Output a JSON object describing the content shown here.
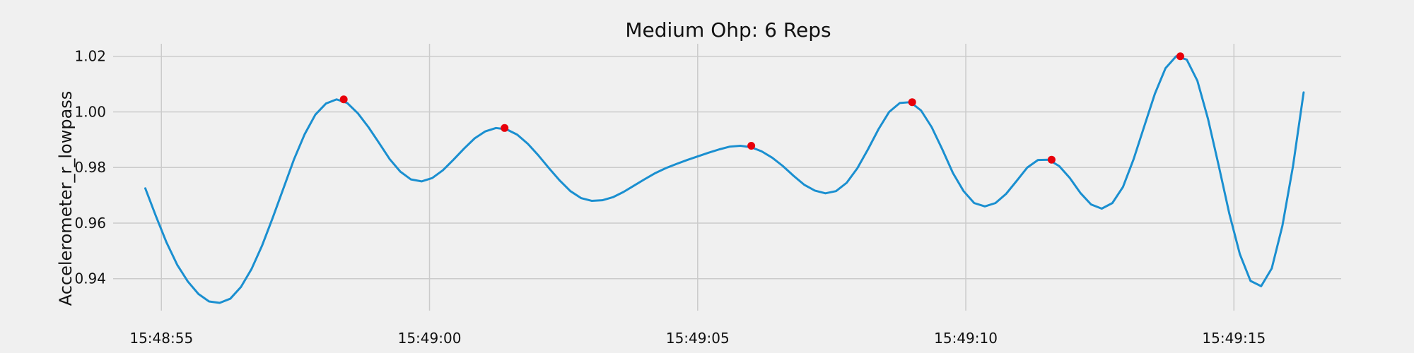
{
  "chart_data": {
    "type": "line",
    "title": "Medium Ohp: 6 Reps",
    "xlabel": "",
    "ylabel": "Accelerometer_r_lowpass",
    "x_unit": "time",
    "x_start": "15:48:54.7",
    "x_end": "15:49:16.3",
    "xlim": [
      "15:48:54.1",
      "15:49:17.0"
    ],
    "ylim": [
      0.9285,
      1.0245
    ],
    "x_ticks": [
      "15:48:55",
      "15:49:00",
      "15:49:05",
      "15:49:10",
      "15:49:15"
    ],
    "y_ticks": [
      0.94,
      0.96,
      0.98,
      1.0,
      1.02
    ],
    "y_tick_labels": [
      "0.94",
      "0.96",
      "0.98",
      "1.00",
      "1.02"
    ],
    "grid": true,
    "series": [
      {
        "color": "#1a8fd0",
        "values": [
          0.9725,
          0.9625,
          0.953,
          0.945,
          0.939,
          0.9345,
          0.9318,
          0.9313,
          0.9328,
          0.937,
          0.9435,
          0.952,
          0.962,
          0.9725,
          0.983,
          0.992,
          0.999,
          1.003,
          1.0045,
          1.0032,
          0.9995,
          0.9945,
          0.9888,
          0.983,
          0.9785,
          0.9757,
          0.975,
          0.9762,
          0.979,
          0.9828,
          0.9868,
          0.9905,
          0.993,
          0.9942,
          0.9937,
          0.9918,
          0.9885,
          0.9843,
          0.9797,
          0.9753,
          0.9715,
          0.969,
          0.968,
          0.9682,
          0.9693,
          0.9712,
          0.9735,
          0.9758,
          0.978,
          0.9798,
          0.9813,
          0.9827,
          0.984,
          0.9853,
          0.9865,
          0.9875,
          0.9878,
          0.9873,
          0.9858,
          0.9835,
          0.9805,
          0.977,
          0.9738,
          0.9717,
          0.9707,
          0.9715,
          0.9745,
          0.9797,
          0.9865,
          0.9938,
          1.0,
          1.0032,
          1.0035,
          1.0005,
          0.9945,
          0.9865,
          0.978,
          0.9715,
          0.9672,
          0.966,
          0.9672,
          0.9705,
          0.9752,
          0.98,
          0.9827,
          0.9828,
          0.9805,
          0.9762,
          0.9708,
          0.9667,
          0.9652,
          0.9672,
          0.973,
          0.983,
          0.9948,
          1.0065,
          1.0157,
          1.02,
          1.0188,
          1.0112,
          0.9975,
          0.9808,
          0.9635,
          0.9488,
          0.9392,
          0.9373,
          0.9437,
          0.959,
          0.9805,
          1.007
        ]
      }
    ],
    "markers": {
      "color": "#e8000b",
      "points": [
        {
          "x": "15:48:58.4",
          "y": 1.0045
        },
        {
          "x": "15:49:01.4",
          "y": 0.9942
        },
        {
          "x": "15:49:06.0",
          "y": 0.9878
        },
        {
          "x": "15:49:09.0",
          "y": 1.0035
        },
        {
          "x": "15:49:11.6",
          "y": 0.9828
        },
        {
          "x": "15:49:14.0",
          "y": 1.02
        }
      ]
    }
  }
}
